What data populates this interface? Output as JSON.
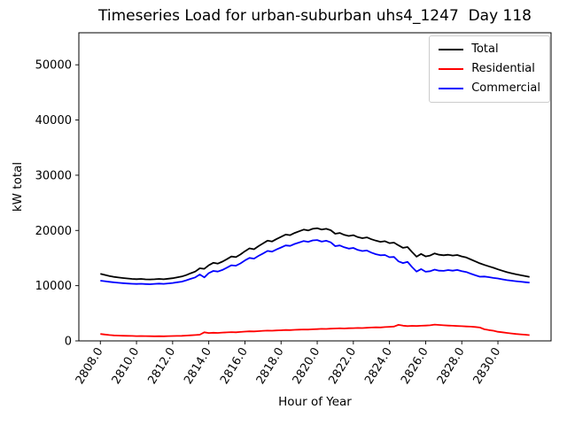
{
  "chart_data": {
    "type": "line",
    "title": "Timeseries Load for urban-suburban uhs4_1247  Day 118",
    "xlabel": "Hour of Year",
    "ylabel": "kW total",
    "xlim": [
      2806.81,
      2832.94
    ],
    "ylim": [
      0,
      55800
    ],
    "grid": false,
    "legend_position": "upper right",
    "xticks": [
      2808,
      2810,
      2812,
      2814,
      2816,
      2818,
      2820,
      2822,
      2824,
      2826,
      2828,
      2830
    ],
    "xtick_labels": [
      "2808.0",
      "2810.0",
      "2812.0",
      "2814.0",
      "2816.0",
      "2818.0",
      "2820.0",
      "2822.0",
      "2824.0",
      "2826.0",
      "2828.0",
      "2830.0"
    ],
    "yticks": [
      0,
      10000,
      20000,
      30000,
      40000,
      50000
    ],
    "ytick_labels": [
      "0",
      "10000",
      "20000",
      "30000",
      "40000",
      "50000"
    ],
    "legend": {
      "entries": [
        {
          "label": "Total",
          "color": "#000000"
        },
        {
          "label": "Residential",
          "color": "#ff0000"
        },
        {
          "label": "Commercial",
          "color": "#0000ff"
        }
      ]
    },
    "x": [
      2808.0,
      2808.25,
      2808.5,
      2808.75,
      2809.0,
      2809.25,
      2809.5,
      2809.75,
      2810.0,
      2810.25,
      2810.5,
      2810.75,
      2811.0,
      2811.25,
      2811.5,
      2811.75,
      2812.0,
      2812.25,
      2812.5,
      2812.75,
      2813.0,
      2813.25,
      2813.5,
      2813.75,
      2814.0,
      2814.25,
      2814.5,
      2814.75,
      2815.0,
      2815.25,
      2815.5,
      2815.75,
      2816.0,
      2816.25,
      2816.5,
      2816.75,
      2817.0,
      2817.25,
      2817.5,
      2817.75,
      2818.0,
      2818.25,
      2818.5,
      2818.75,
      2819.0,
      2819.25,
      2819.5,
      2819.75,
      2820.0,
      2820.25,
      2820.5,
      2820.75,
      2821.0,
      2821.25,
      2821.5,
      2821.75,
      2822.0,
      2822.25,
      2822.5,
      2822.75,
      2823.0,
      2823.25,
      2823.5,
      2823.75,
      2824.0,
      2824.25,
      2824.5,
      2824.75,
      2825.0,
      2825.25,
      2825.5,
      2825.75,
      2826.0,
      2826.25,
      2826.5,
      2826.75,
      2827.0,
      2827.25,
      2827.5,
      2827.75,
      2828.0,
      2828.25,
      2828.5,
      2828.75,
      2829.0,
      2829.25,
      2829.5,
      2829.75,
      2830.0,
      2830.25,
      2830.5,
      2830.75,
      2831.0,
      2831.25,
      2831.5,
      2831.75
    ],
    "series": [
      {
        "name": "Total",
        "color": "#000000",
        "values": [
          12150,
          11950,
          11750,
          11600,
          11480,
          11380,
          11300,
          11230,
          11180,
          11230,
          11150,
          11120,
          11160,
          11220,
          11160,
          11260,
          11360,
          11520,
          11650,
          11920,
          12250,
          12560,
          13150,
          13050,
          13700,
          14150,
          14000,
          14350,
          14800,
          15280,
          15170,
          15650,
          16250,
          16750,
          16600,
          17150,
          17650,
          18150,
          18000,
          18450,
          18850,
          19250,
          19150,
          19550,
          19850,
          20150,
          20000,
          20300,
          20400,
          20150,
          20300,
          20050,
          19400,
          19550,
          19200,
          19000,
          19150,
          18800,
          18600,
          18750,
          18400,
          18150,
          17950,
          18050,
          17700,
          17800,
          17300,
          16850,
          17000,
          16100,
          15250,
          15750,
          15300,
          15450,
          15850,
          15600,
          15500,
          15600,
          15450,
          15550,
          15300,
          15100,
          14750,
          14400,
          14050,
          13750,
          13500,
          13250,
          12950,
          12700,
          12450,
          12250,
          12050,
          11900,
          11750,
          11600
        ]
      },
      {
        "name": "Residential",
        "color": "#ff0000",
        "values": [
          1250,
          1150,
          1060,
          1000,
          960,
          930,
          910,
          890,
          870,
          880,
          860,
          850,
          840,
          850,
          840,
          860,
          880,
          900,
          920,
          960,
          1010,
          1060,
          1120,
          1550,
          1420,
          1480,
          1440,
          1500,
          1540,
          1580,
          1560,
          1620,
          1680,
          1730,
          1710,
          1760,
          1820,
          1860,
          1840,
          1890,
          1930,
          1970,
          1950,
          2000,
          2030,
          2070,
          2050,
          2100,
          2140,
          2180,
          2160,
          2210,
          2240,
          2270,
          2250,
          2290,
          2310,
          2340,
          2320,
          2380,
          2420,
          2460,
          2440,
          2500,
          2550,
          2600,
          2900,
          2750,
          2680,
          2720,
          2700,
          2740,
          2780,
          2830,
          2950,
          2880,
          2820,
          2780,
          2740,
          2700,
          2660,
          2620,
          2580,
          2520,
          2420,
          2100,
          1950,
          1850,
          1650,
          1550,
          1450,
          1350,
          1250,
          1180,
          1120,
          1050
        ]
      },
      {
        "name": "Commercial",
        "color": "#0000ff",
        "values": [
          10900,
          10800,
          10690,
          10600,
          10520,
          10450,
          10390,
          10340,
          10310,
          10350,
          10290,
          10270,
          10320,
          10370,
          10320,
          10400,
          10480,
          10620,
          10730,
          10960,
          11240,
          11500,
          12030,
          11500,
          12280,
          12670,
          12560,
          12850,
          13260,
          13700,
          13610,
          14030,
          14570,
          15020,
          14890,
          15390,
          15830,
          16290,
          16160,
          16560,
          16920,
          17280,
          17200,
          17550,
          17820,
          18080,
          17950,
          18200,
          18260,
          17970,
          18140,
          17840,
          17160,
          17280,
          16950,
          16710,
          16840,
          16460,
          16280,
          16370,
          15980,
          15690,
          15510,
          15550,
          15150,
          15200,
          14400,
          14100,
          14320,
          13380,
          12550,
          13010,
          12520,
          12620,
          12900,
          12720,
          12680,
          12820,
          12710,
          12850,
          12640,
          12480,
          12170,
          11880,
          11630,
          11650,
          11550,
          11400,
          11300,
          11150,
          11000,
          10900,
          10800,
          10720,
          10630,
          10550
        ]
      }
    ]
  }
}
